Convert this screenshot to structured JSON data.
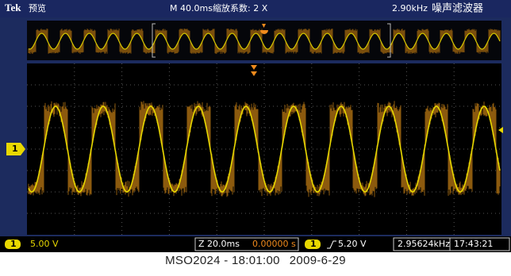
{
  "header": {
    "brand": "Tek",
    "mode": "预览",
    "timebase": "M 40.0ms",
    "zoom": "缩放系数: 2 X",
    "filter_freq": "2.90kHz",
    "filter": "噪声滤波器"
  },
  "channel_marker": "1",
  "status": {
    "ch_badge": "1",
    "ch_scale": "5.00 V",
    "zoom_scale": "Z 20.0ms",
    "position": "0.00000 s",
    "trig_badge": "1",
    "trigger": "5.20 V",
    "frequency": "2.95624kHz",
    "time": "17:43:21"
  },
  "caption": {
    "model": "MSO2024 - 18:01:00",
    "date": "2009-6-29"
  }
}
